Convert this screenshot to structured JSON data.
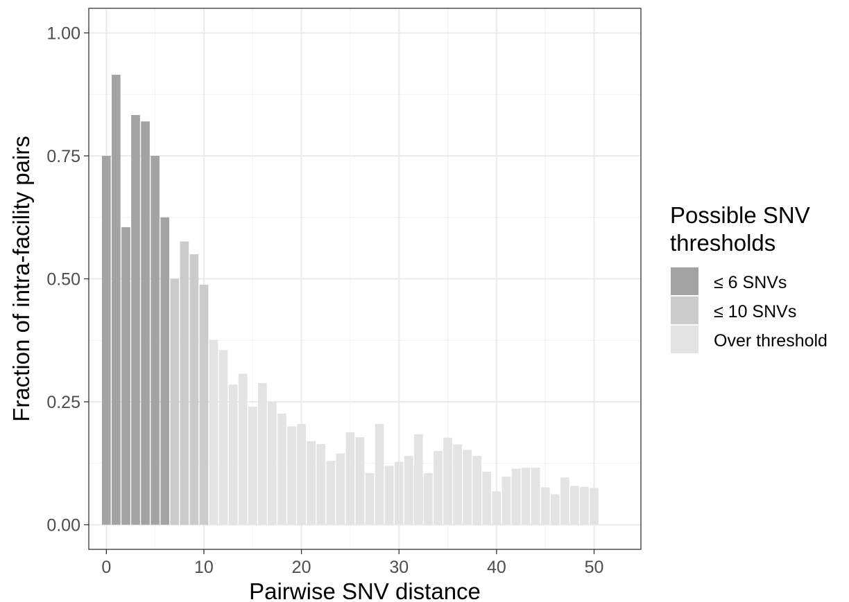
{
  "chart_data": {
    "type": "bar",
    "xlabel": "Pairwise SNV distance",
    "ylabel": "Fraction of intra-facility pairs",
    "xlim": [
      -1.8,
      54.8
    ],
    "ylim": [
      -0.05,
      1.05
    ],
    "x_ticks": [
      0,
      10,
      20,
      30,
      40,
      50
    ],
    "x_tick_labels": [
      "0",
      "10",
      "20",
      "30",
      "40",
      "50"
    ],
    "y_ticks": [
      0,
      0.25,
      0.5,
      0.75,
      1.0
    ],
    "y_tick_labels": [
      "0.00",
      "0.25",
      "0.50",
      "0.75",
      "1.00"
    ],
    "grid": true,
    "legend": {
      "title_lines": [
        "Possible SNV",
        "thresholds"
      ],
      "position": "right",
      "entries": [
        {
          "label": "≤ 6 SNVs",
          "color": "#a3a3a3"
        },
        {
          "label": "≤ 10 SNVs",
          "color": "#cbcbcb"
        },
        {
          "label": "Over threshold",
          "color": "#e3e3e3"
        }
      ]
    },
    "series": [
      {
        "name": "≤ 6 SNVs",
        "color": "#a3a3a3",
        "x": [
          0,
          1,
          2,
          3,
          4,
          5,
          6
        ],
        "values": [
          0.75,
          0.915,
          0.605,
          0.833,
          0.82,
          0.75,
          0.625
        ]
      },
      {
        "name": "≤ 10 SNVs",
        "color": "#cbcbcb",
        "x": [
          7,
          8,
          9,
          10
        ],
        "values": [
          0.5,
          0.576,
          0.55,
          0.488
        ]
      },
      {
        "name": "Over threshold",
        "color": "#e3e3e3",
        "x": [
          11,
          12,
          13,
          14,
          15,
          16,
          17,
          18,
          19,
          20,
          21,
          22,
          23,
          24,
          25,
          26,
          27,
          28,
          29,
          30,
          31,
          32,
          33,
          34,
          35,
          36,
          37,
          38,
          39,
          40,
          41,
          42,
          43,
          44,
          45,
          46,
          47,
          48,
          49,
          50
        ],
        "values": [
          0.376,
          0.355,
          0.285,
          0.307,
          0.24,
          0.288,
          0.25,
          0.226,
          0.2,
          0.205,
          0.17,
          0.164,
          0.13,
          0.145,
          0.188,
          0.178,
          0.105,
          0.205,
          0.12,
          0.128,
          0.14,
          0.184,
          0.105,
          0.15,
          0.177,
          0.163,
          0.152,
          0.14,
          0.108,
          0.068,
          0.098,
          0.114,
          0.116,
          0.116,
          0.076,
          0.062,
          0.096,
          0.079,
          0.077,
          0.075
        ]
      }
    ]
  }
}
